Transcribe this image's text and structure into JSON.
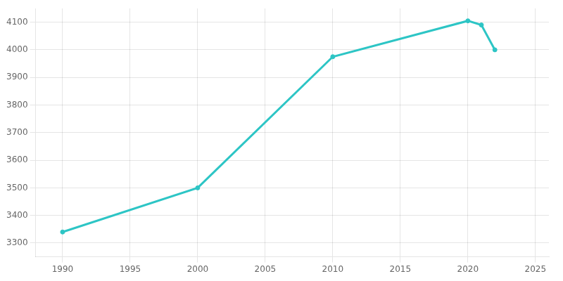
{
  "chart_data": {
    "type": "line",
    "x": [
      1990,
      2000,
      2010,
      2020,
      2021,
      2022
    ],
    "values": [
      3340,
      3500,
      3975,
      4105,
      4090,
      4000
    ],
    "color": "#2dc5c5",
    "marker": "circle",
    "xlim": [
      1988,
      2026
    ],
    "ylim": [
      3250,
      4150
    ],
    "xticks": [
      1990,
      1995,
      2000,
      2005,
      2010,
      2015,
      2020,
      2025
    ],
    "yticks": [
      3300,
      3400,
      3500,
      3600,
      3700,
      3800,
      3900,
      4000,
      4100
    ],
    "grid": true
  }
}
